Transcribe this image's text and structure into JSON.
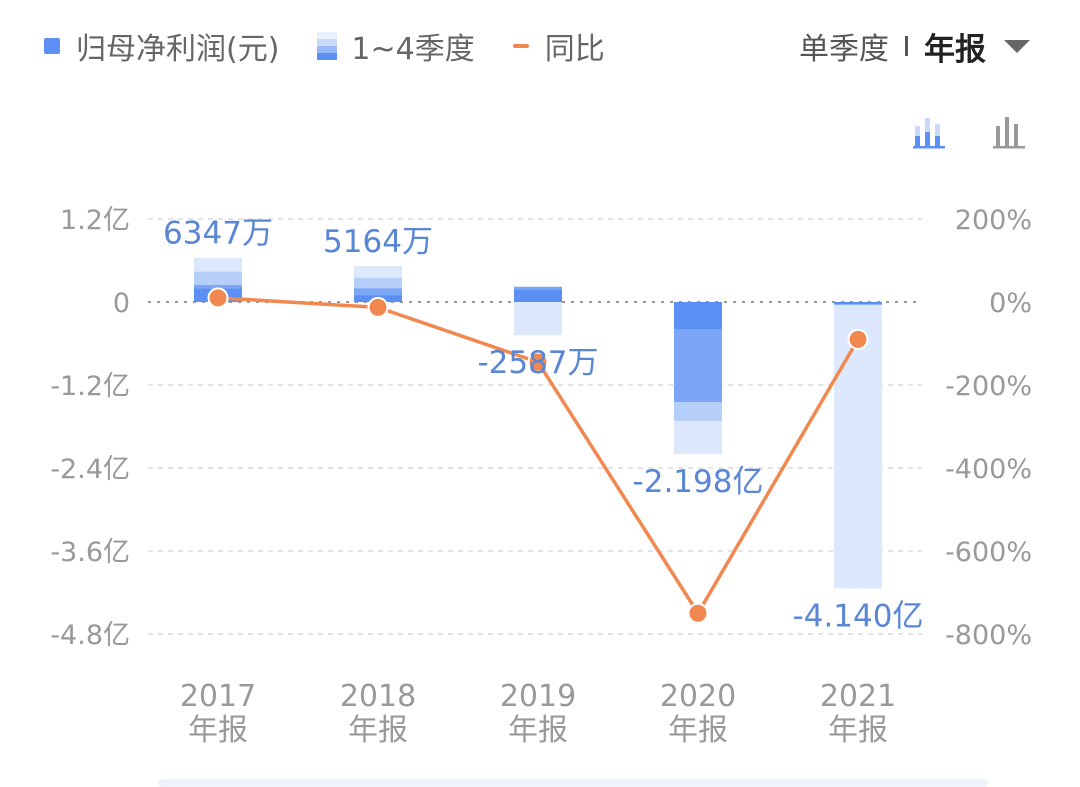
{
  "legend": {
    "net_profit": "归母净利润(元)",
    "quarters": "1~4季度",
    "yoy": "同比"
  },
  "toggle": {
    "quarterly": "单季度",
    "annual": "年报"
  },
  "icons": {
    "stacked_view": "stacked-bar-chart-icon",
    "grouped_view": "bar-chart-icon",
    "dropdown": "caret-down-icon"
  },
  "colors": {
    "q1": "#5b8ff3",
    "q2": "#7ba6f6",
    "q3": "#b6cefa",
    "q4": "#dde8fc",
    "line": "#f0884f",
    "label": "#5a86d6",
    "axis_text": "#999999"
  },
  "chart_data": {
    "type": "bar",
    "categories": [
      "2017\n年报",
      "2018\n年报",
      "2019\n年报",
      "2020\n年报",
      "2021\n年报"
    ],
    "years": [
      "2017",
      "2018",
      "2019",
      "2020",
      "2021"
    ],
    "period_label": "年报",
    "unit": "亿元",
    "series": [
      {
        "name": "归母净利润(元)",
        "values": [
          0.6347,
          0.5164,
          -0.2587,
          -2.198,
          -4.14
        ]
      },
      {
        "name": "同比",
        "axis": "right",
        "unit": "%",
        "values": [
          10,
          -13,
          -145,
          -750,
          -90
        ]
      }
    ],
    "quarters": [
      [
        0.2,
        0.05,
        0.19,
        0.2
      ],
      [
        0.1,
        0.1,
        0.15,
        0.17
      ],
      [
        0.18,
        0.04,
        0.0,
        -0.48
      ],
      [
        -0.4,
        -1.05,
        -0.27,
        -0.48
      ],
      [
        -0.04,
        0.0,
        0.0,
        -4.1
      ]
    ],
    "data_labels": [
      "6347万",
      "5164万",
      "-2587万",
      "-2.198亿",
      "-4.140亿"
    ],
    "left_axis": {
      "ticks": [
        "1.2亿",
        "0",
        "-1.2亿",
        "-2.4亿",
        "-3.6亿",
        "-4.8亿"
      ],
      "values": [
        1.2,
        0,
        -1.2,
        -2.4,
        -3.6,
        -4.8
      ]
    },
    "right_axis": {
      "ticks": [
        "200%",
        "0%",
        "-200%",
        "-400%",
        "-600%",
        "-800%"
      ],
      "values": [
        200,
        0,
        -200,
        -400,
        -600,
        -800
      ]
    },
    "grid": true,
    "legend_position": "top-left"
  }
}
